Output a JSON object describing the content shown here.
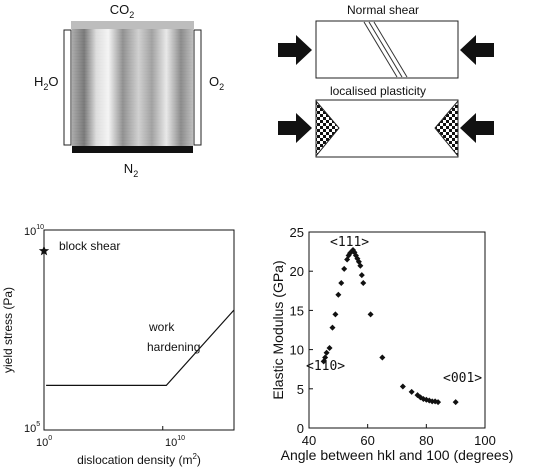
{
  "panel_a": {
    "top_label": "CO",
    "top_sub": "2",
    "left_label": "H",
    "left_sub": "2",
    "left_tail": "O",
    "right_label": "O",
    "right_sub": "2",
    "bottom_label": "N",
    "bottom_sub": "2"
  },
  "panel_b": {
    "title_top": "Normal shear",
    "title_bottom": "localised plasticity"
  },
  "chart_data": [
    {
      "type": "line",
      "xlabel_text": "dislocation density (m",
      "xlabel_sup": "2",
      "xlabel_tail": ")",
      "ylabel": "yield stress (Pa)",
      "x_scale": "log",
      "y_scale": "log",
      "xlim": [
        1,
        1e+16
      ],
      "ylim": [
        100000.0,
        10000000000.0
      ],
      "x_ticks": [
        {
          "base": "10",
          "exp": "0"
        },
        {
          "base": "10",
          "exp": "10"
        }
      ],
      "y_ticks": [
        {
          "base": "10",
          "exp": "10"
        },
        {
          "base": "10",
          "exp": "5"
        }
      ],
      "annotations": {
        "block_shear": "block shear",
        "work": "work",
        "hardening": "hardening"
      },
      "series": [
        {
          "points": [
            [
              1.5,
              1300000.0
            ],
            [
              20000000000.0,
              1300000.0
            ],
            [
              1e+16,
              100000000.0
            ]
          ]
        }
      ],
      "markers": [
        {
          "x": 1,
          "y": 3000000000.0
        }
      ]
    },
    {
      "type": "scatter",
      "xlabel": "Angle between hkl and 100 (degrees)",
      "ylabel": "Elastic Modulus (GPa)",
      "xlim": [
        40,
        100
      ],
      "ylim": [
        0,
        25
      ],
      "x_ticks": [
        "40",
        "60",
        "80",
        "100"
      ],
      "y_ticks": [
        "0",
        "5",
        "10",
        "15",
        "20",
        "25"
      ],
      "annotations": {
        "l111": "<111>",
        "l110": "<110>",
        "l001": "<001>"
      },
      "points": [
        [
          45,
          8.5
        ],
        [
          45.5,
          9.0
        ],
        [
          46,
          9.6
        ],
        [
          47,
          10.2
        ],
        [
          48,
          12.8
        ],
        [
          49,
          14.5
        ],
        [
          50,
          17.0
        ],
        [
          51,
          18.5
        ],
        [
          52,
          20.3
        ],
        [
          53,
          21.5
        ],
        [
          53.5,
          22.0
        ],
        [
          54,
          22.3
        ],
        [
          54.5,
          22.5
        ],
        [
          55,
          22.7
        ],
        [
          55.5,
          22.4
        ],
        [
          56,
          22.0
        ],
        [
          56.5,
          21.6
        ],
        [
          57,
          21.2
        ],
        [
          57.5,
          20.7
        ],
        [
          58,
          19.5
        ],
        [
          58.5,
          18.5
        ],
        [
          61,
          14.5
        ],
        [
          65,
          9.0
        ],
        [
          72,
          5.3
        ],
        [
          75,
          4.6
        ],
        [
          77,
          4.2
        ],
        [
          78,
          3.9
        ],
        [
          79,
          3.7
        ],
        [
          80,
          3.6
        ],
        [
          81,
          3.5
        ],
        [
          82,
          3.4
        ],
        [
          83,
          3.4
        ],
        [
          84,
          3.3
        ],
        [
          90,
          3.3
        ]
      ]
    }
  ]
}
